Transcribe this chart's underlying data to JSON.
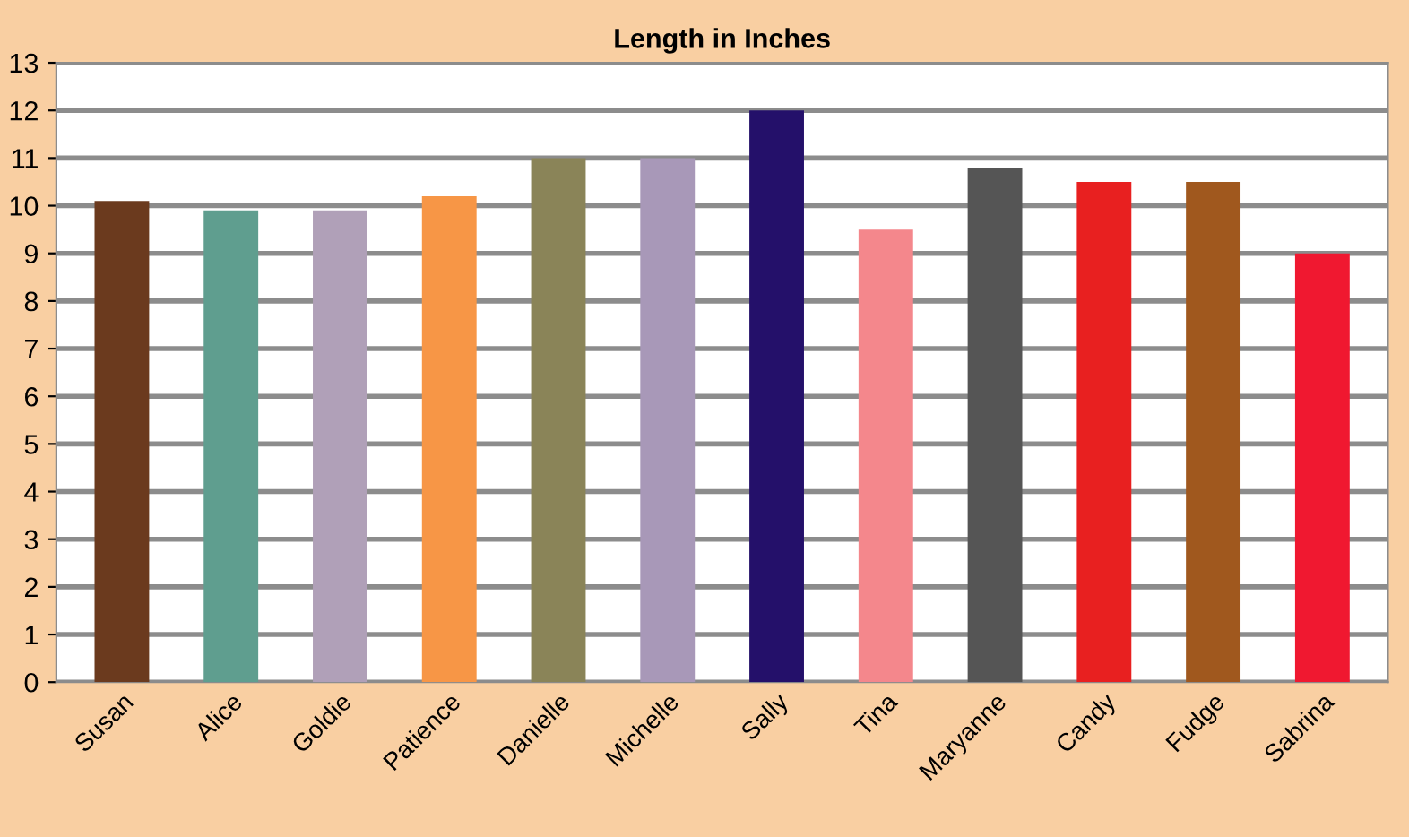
{
  "chart_data": {
    "type": "bar",
    "title": "Length in Inches",
    "categories": [
      "Susan",
      "Alice",
      "Goldie",
      "Patience",
      "Danielle",
      "Michelle",
      "Sally",
      "Tina",
      "Maryanne",
      "Candy",
      "Fudge",
      "Sabrina"
    ],
    "values": [
      10.1,
      9.9,
      9.9,
      10.2,
      11,
      11,
      12,
      9.5,
      10.8,
      10.5,
      10.5,
      9
    ],
    "colors": [
      "#6b3a1e",
      "#5f9e8f",
      "#b0a0b8",
      "#f79646",
      "#8a8458",
      "#a898b8",
      "#24106a",
      "#f4878c",
      "#555555",
      "#e82020",
      "#a0581e",
      "#f01830"
    ],
    "ylim": [
      0,
      13
    ],
    "yticks": [
      0,
      1,
      2,
      3,
      4,
      5,
      6,
      7,
      8,
      9,
      10,
      11,
      12,
      13
    ],
    "grid": "y"
  }
}
